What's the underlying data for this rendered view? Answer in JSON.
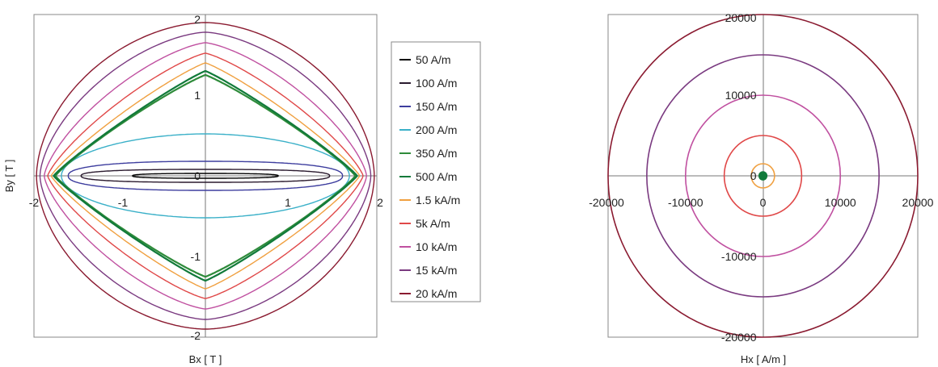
{
  "chart_data": [
    {
      "type": "line",
      "title": "",
      "xlabel": "Bx [ T ]",
      "ylabel": "By [ T ]",
      "xlim": [
        -2,
        2
      ],
      "ylim": [
        -2,
        2
      ],
      "x_ticks": [
        -2,
        -1,
        0,
        1,
        2
      ],
      "y_ticks": [
        -2,
        -1,
        0,
        1,
        2
      ],
      "grid": false,
      "legend_position": "right",
      "series": [
        {
          "name": "50 A/m",
          "color": "#000000",
          "bx_max": 0.85,
          "by_max": 0.03,
          "shape_exponent": 2.6
        },
        {
          "name": "100 A/m",
          "color": "#2a1a2e",
          "bx_max": 1.45,
          "by_max": 0.08,
          "shape_exponent": 2.6
        },
        {
          "name": "150 A/m",
          "color": "#3d3d9e",
          "bx_max": 1.6,
          "by_max": 0.18,
          "shape_exponent": 2.4
        },
        {
          "name": "200 A/m",
          "color": "#3ab0c8",
          "bx_max": 1.68,
          "by_max": 0.52,
          "shape_exponent": 1.9
        },
        {
          "name": "350 A/m",
          "color": "#2e8b3a",
          "bx_max": 1.75,
          "by_max": 1.25,
          "shape_exponent": 1.12
        },
        {
          "name": "500 A/m",
          "color": "#117a3a",
          "bx_max": 1.77,
          "by_max": 1.3,
          "shape_exponent": 1.1
        },
        {
          "name": "1.5 kA/m",
          "color": "#f0a040",
          "bx_max": 1.8,
          "by_max": 1.4,
          "shape_exponent": 1.15
        },
        {
          "name": "5k A/m",
          "color": "#e04848",
          "bx_max": 1.84,
          "by_max": 1.52,
          "shape_exponent": 1.25
        },
        {
          "name": "10 kA/m",
          "color": "#c050a0",
          "bx_max": 1.88,
          "by_max": 1.65,
          "shape_exponent": 1.4
        },
        {
          "name": "15 kA/m",
          "color": "#7a3a80",
          "bx_max": 1.93,
          "by_max": 1.78,
          "shape_exponent": 1.6
        },
        {
          "name": "20 kA/m",
          "color": "#8a1a30",
          "bx_max": 1.97,
          "by_max": 1.9,
          "shape_exponent": 1.8
        }
      ]
    },
    {
      "type": "line",
      "title": "",
      "xlabel": "Hx [ A/m ]",
      "ylabel": "",
      "xlim": [
        -20000,
        20000
      ],
      "ylim": [
        -20000,
        20000
      ],
      "x_ticks": [
        -20000,
        -10000,
        0,
        10000,
        20000
      ],
      "y_ticks": [
        -20000,
        -10000,
        0,
        10000,
        20000
      ],
      "grid": false,
      "legend_position": "none",
      "series": [
        {
          "color": "#117a3a",
          "radius": 500
        },
        {
          "color": "#f0a040",
          "radius": 1500
        },
        {
          "color": "#e04848",
          "radius": 5000
        },
        {
          "color": "#c050a0",
          "radius": 10000
        },
        {
          "color": "#7a3a80",
          "radius": 15000
        },
        {
          "color": "#8a1a30",
          "radius": 20000
        }
      ]
    }
  ]
}
